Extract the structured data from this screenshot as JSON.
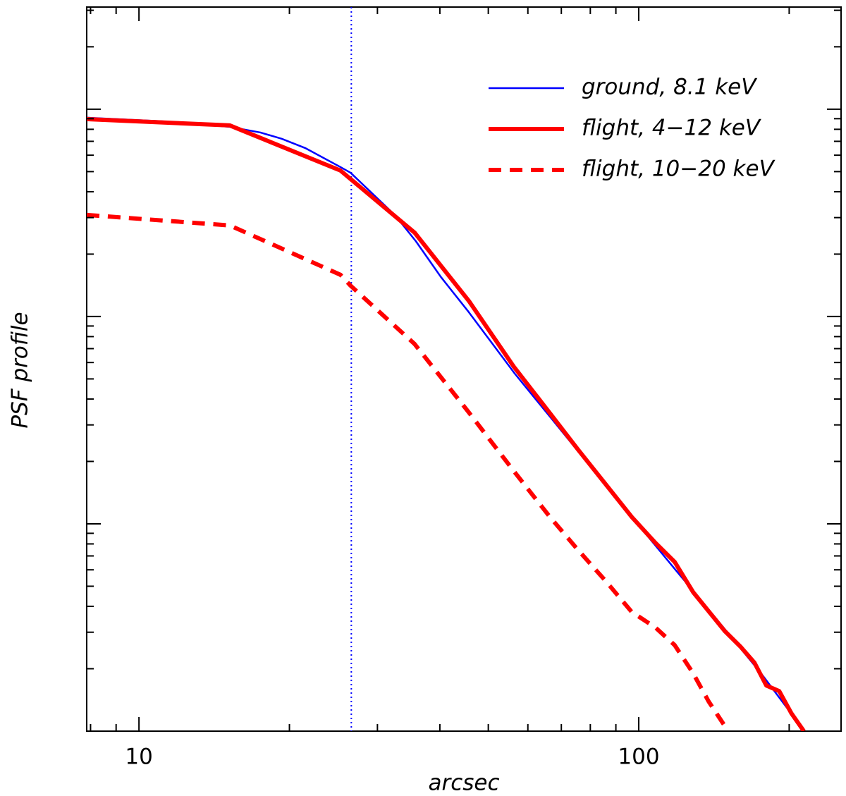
{
  "chart_data": {
    "type": "line",
    "xlabel": "arcsec",
    "ylabel": "PSF profile",
    "xscale": "log",
    "yscale": "log",
    "xlim": [
      7.86,
      254
    ],
    "ylim": [
      0.001,
      3.11
    ],
    "xticks": [
      10,
      100
    ],
    "xminorticks": [
      8,
      9,
      20,
      30,
      40,
      50,
      60,
      70,
      80,
      90,
      200
    ],
    "yticks": [
      0.001,
      0.01,
      0.1,
      1
    ],
    "yminorticks": [
      0.002,
      0.003,
      0.004,
      0.005,
      0.006,
      0.007,
      0.008,
      0.009,
      0.02,
      0.03,
      0.04,
      0.05,
      0.06,
      0.07,
      0.08,
      0.09,
      0.2,
      0.3,
      0.4,
      0.5,
      0.6,
      0.7,
      0.8,
      0.9,
      2,
      3
    ],
    "legend": "upper right",
    "vline": {
      "x": 26.6,
      "color": "#0000ff"
    },
    "series": [
      {
        "name": "ground, 8.1 keV",
        "color": "#0000ff",
        "style": "solid",
        "x": [
          7.86,
          11.1,
          15.2,
          17.5,
          19.3,
          21.5,
          25.3,
          26.5,
          32.5,
          35.8,
          40.2,
          45.7,
          56.5,
          66.4,
          75.6,
          98.1,
          119,
          145,
          176,
          206
        ],
        "values": [
          0.91,
          0.875,
          0.822,
          0.772,
          0.72,
          0.65,
          0.526,
          0.494,
          0.309,
          0.231,
          0.155,
          0.105,
          0.053,
          0.0329,
          0.0224,
          0.0104,
          0.00592,
          0.00334,
          0.00189,
          0.00114
        ]
      },
      {
        "name": "flight, 4−12 keV",
        "color": "#ff0000",
        "style": "thick",
        "x": [
          7.86,
          15.2,
          25.3,
          35.6,
          45.7,
          56.2,
          66.4,
          75.6,
          96.8,
          108,
          118,
          128.5,
          148.6,
          159.7,
          170.4,
          180,
          191,
          202,
          214
        ],
        "values": [
          0.896,
          0.835,
          0.506,
          0.254,
          0.119,
          0.0574,
          0.0342,
          0.0228,
          0.0108,
          0.00809,
          0.00655,
          0.00468,
          0.00304,
          0.00256,
          0.00214,
          0.00166,
          0.00156,
          0.00122,
          0.001
        ]
      },
      {
        "name": "flight, 10−20 keV",
        "color": "#ff0000",
        "style": "dashed",
        "x": [
          7.86,
          15.2,
          25.3,
          26.5,
          35.6,
          45.7,
          56.2,
          66.4,
          75.6,
          86.1,
          96.8,
          108,
          118,
          128.5,
          138,
          151
        ],
        "values": [
          0.309,
          0.275,
          0.159,
          0.141,
          0.0737,
          0.0345,
          0.018,
          0.0108,
          0.00748,
          0.00526,
          0.00376,
          0.00316,
          0.0026,
          0.0019,
          0.00139,
          0.001
        ]
      }
    ]
  }
}
